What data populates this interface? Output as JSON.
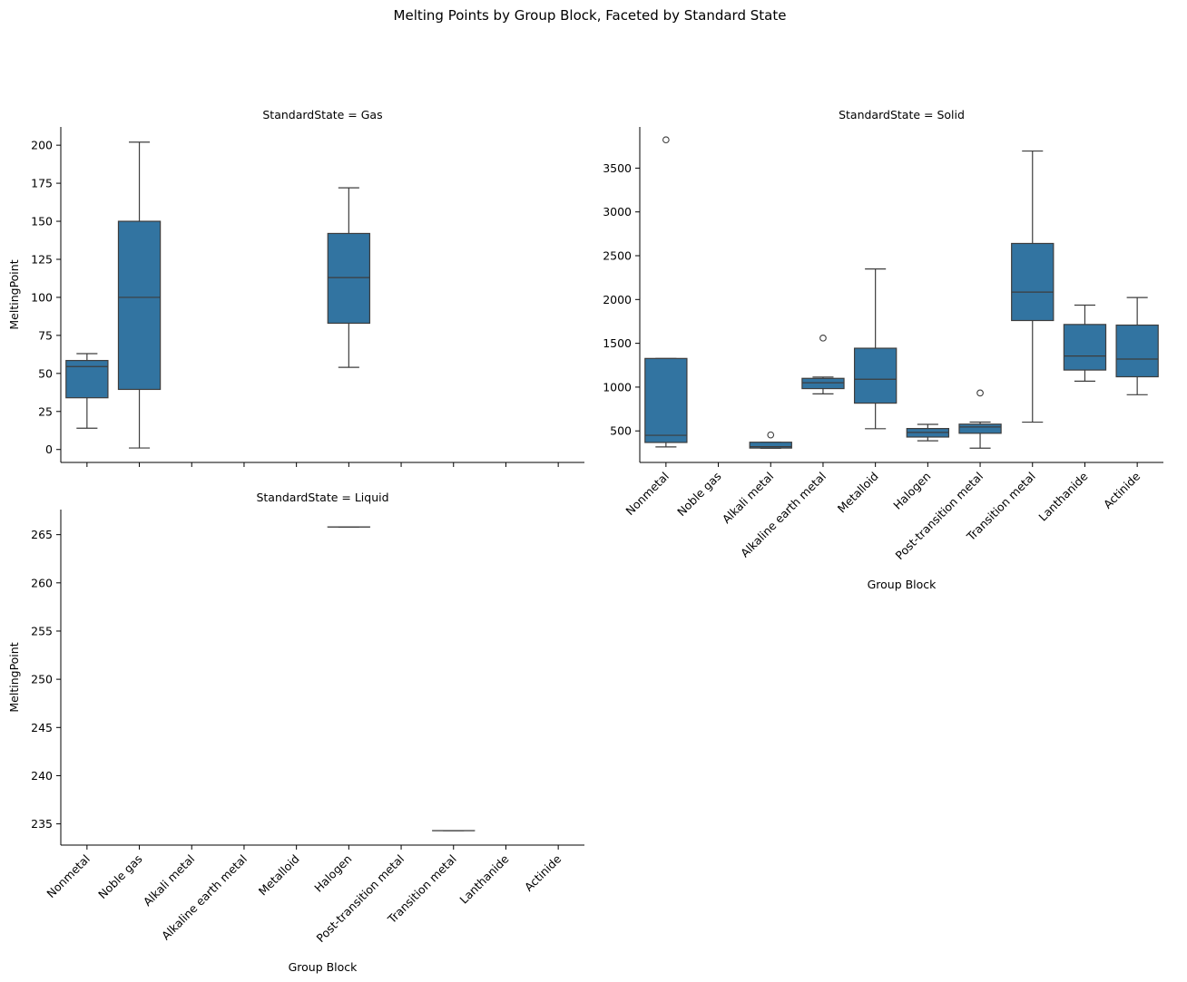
{
  "chart_data": [
    {
      "type": "box",
      "title": "Melting Points by Group Block, Faceted by Standard State",
      "facet_title": "StandardState = Gas",
      "xlabel": "",
      "ylabel": "MeltingPoint",
      "categories": [
        "Nonmetal",
        "Noble gas",
        "Alkali metal",
        "Alkaline earth metal",
        "Metalloid",
        "Halogen",
        "Post-transition metal",
        "Transition metal",
        "Lanthanide",
        "Actinide"
      ],
      "yticks": [
        0,
        25,
        50,
        75,
        100,
        125,
        150,
        175,
        200
      ],
      "ylim": [
        -8.5,
        212
      ],
      "show_x_tick_labels": false,
      "boxes": [
        {
          "category": "Nonmetal",
          "min": 14,
          "q1": 34,
          "median": 54.5,
          "q3": 58.5,
          "max": 63,
          "outliers": []
        },
        {
          "category": "Noble gas",
          "min": 1,
          "q1": 39.5,
          "median": 100,
          "q3": 150,
          "max": 202,
          "outliers": []
        },
        {
          "category": "Halogen",
          "min": 54,
          "q1": 83,
          "median": 113,
          "q3": 142,
          "max": 172,
          "outliers": []
        }
      ]
    },
    {
      "type": "box",
      "facet_title": "StandardState = Solid",
      "xlabel": "Group Block",
      "ylabel": "",
      "categories": [
        "Nonmetal",
        "Noble gas",
        "Alkali metal",
        "Alkaline earth metal",
        "Metalloid",
        "Halogen",
        "Post-transition metal",
        "Transition metal",
        "Lanthanide",
        "Actinide"
      ],
      "yticks": [
        500,
        1000,
        1500,
        2000,
        2500,
        3000,
        3500
      ],
      "ylim": [
        140,
        3970
      ],
      "show_x_tick_labels": true,
      "boxes": [
        {
          "category": "Nonmetal",
          "min": 317,
          "q1": 368,
          "median": 450,
          "q3": 1327,
          "max": 1327,
          "outliers": [
            3823
          ]
        },
        {
          "category": "Alkali metal",
          "min": 302,
          "q1": 304,
          "median": 320,
          "q3": 371,
          "max": 371,
          "outliers": [
            454
          ]
        },
        {
          "category": "Alkaline earth metal",
          "min": 923,
          "q1": 983,
          "median": 1050,
          "q3": 1100,
          "max": 1115,
          "outliers": [
            1560
          ]
        },
        {
          "category": "Metalloid",
          "min": 525,
          "q1": 817,
          "median": 1090,
          "q3": 1444,
          "max": 2349,
          "outliers": []
        },
        {
          "category": "Halogen",
          "min": 387,
          "q1": 430,
          "median": 483,
          "q3": 527,
          "max": 575,
          "outliers": []
        },
        {
          "category": "Post-transition metal",
          "min": 303,
          "q1": 473,
          "median": 545,
          "q3": 577,
          "max": 601,
          "outliers": [
            933
          ]
        },
        {
          "category": "Transition metal",
          "min": 600,
          "q1": 1760,
          "median": 2085,
          "q3": 2640,
          "max": 3695,
          "outliers": []
        },
        {
          "category": "Lanthanide",
          "min": 1068,
          "q1": 1195,
          "median": 1355,
          "q3": 1715,
          "max": 1936,
          "outliers": []
        },
        {
          "category": "Actinide",
          "min": 913,
          "q1": 1118,
          "median": 1320,
          "q3": 1708,
          "max": 2023,
          "outliers": []
        }
      ]
    },
    {
      "type": "box",
      "facet_title": "StandardState = Liquid",
      "xlabel": "Group Block",
      "ylabel": "MeltingPoint",
      "categories": [
        "Nonmetal",
        "Noble gas",
        "Alkali metal",
        "Alkaline earth metal",
        "Metalloid",
        "Halogen",
        "Post-transition metal",
        "Transition metal",
        "Lanthanide",
        "Actinide"
      ],
      "yticks": [
        235,
        240,
        245,
        250,
        255,
        260,
        265
      ],
      "ylim": [
        232.8,
        267.6
      ],
      "show_x_tick_labels": true,
      "boxes": [
        {
          "category": "Halogen",
          "min": 265.8,
          "q1": 265.8,
          "median": 265.8,
          "q3": 265.8,
          "max": 265.8,
          "outliers": []
        },
        {
          "category": "Transition metal",
          "min": 234.3,
          "q1": 234.3,
          "median": 234.3,
          "q3": 234.3,
          "max": 234.3,
          "outliers": []
        }
      ]
    }
  ],
  "colors": {
    "box_fill": "#3274a1",
    "line": "#3d3d3d",
    "axis": "#000000"
  }
}
